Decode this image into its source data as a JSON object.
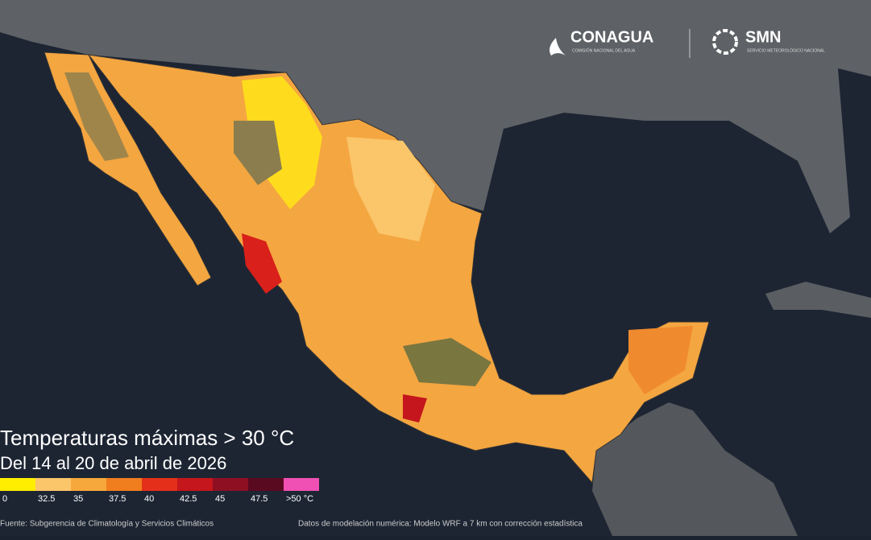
{
  "logos": {
    "conagua": "CONAGUA",
    "conagua_sub": "COMISIÓN NACIONAL DEL AGUA",
    "smn": "SMN",
    "smn_sub": "SERVICIO METEOROLÓGICO NACIONAL"
  },
  "title": "Temperaturas máximas > 30 °C",
  "subtitle": "Del 14 al 20 de abril de 2026",
  "legend": [
    {
      "label": "0",
      "color": "#ffee00"
    },
    {
      "label": "32.5",
      "color": "#fbc56a"
    },
    {
      "label": "35",
      "color": "#f7a83c"
    },
    {
      "label": "37.5",
      "color": "#f07d1e"
    },
    {
      "label": "40",
      "color": "#e4301a"
    },
    {
      "label": "42.5",
      "color": "#c4161c"
    },
    {
      "label": "45",
      "color": "#8e0f22"
    },
    {
      "label": "47.5",
      "color": "#5a0a20"
    },
    {
      "label": ">50 °C",
      "color": "#f050b4"
    }
  ],
  "footer": {
    "source": "Fuente: Subgerencia de Climatología y Servicios Climáticos",
    "model": "Datos de modelación numérica: Modelo WRF a 7 km con corrección estadística"
  }
}
